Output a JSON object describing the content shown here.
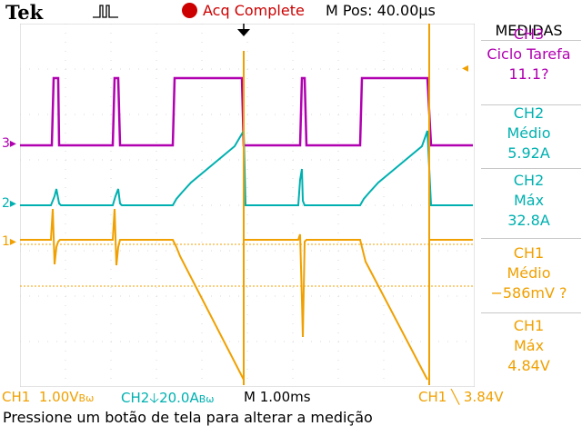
{
  "header": {
    "brand": "Tek",
    "acq_status": "Acq Complete",
    "m_pos": "M Pos: 40.00µs"
  },
  "measurements": {
    "title": "MEDIDAS",
    "items": [
      {
        "channel": "CH3",
        "type": "Ciclo Tarefa",
        "value": "11.1?",
        "color": "#b000b0"
      },
      {
        "channel": "CH2",
        "type": "Médio",
        "value": "5.92A",
        "color": "#00b0b0"
      },
      {
        "channel": "CH2",
        "type": "Máx",
        "value": "32.8A",
        "color": "#00b0b0"
      },
      {
        "channel": "CH1",
        "type": "Médio",
        "value": "−586mV ?",
        "color": "#f0a000"
      },
      {
        "channel": "CH1",
        "type": "Máx",
        "value": "4.84V",
        "color": "#f0a000"
      }
    ]
  },
  "channels": {
    "ch1_label": "CH1",
    "ch1_scale": "1.00V",
    "ch1_bw": "B",
    "ch2_label": "CH2",
    "ch2_scale": "20.0A",
    "ch2_bw": "B",
    "timebase": "M 1.00ms",
    "trigger_source": "CH1",
    "trigger_slope": "╲",
    "trigger_level": "3.84V"
  },
  "markers": {
    "ch1": "1",
    "ch2": "2",
    "ch3": "3"
  },
  "colors": {
    "ch1": "#f0a000",
    "ch2": "#00b0b0",
    "ch3": "#b000b0",
    "acq": "#cc0000"
  },
  "status_message": "Pressione um botão de tela para alterar a medição"
}
